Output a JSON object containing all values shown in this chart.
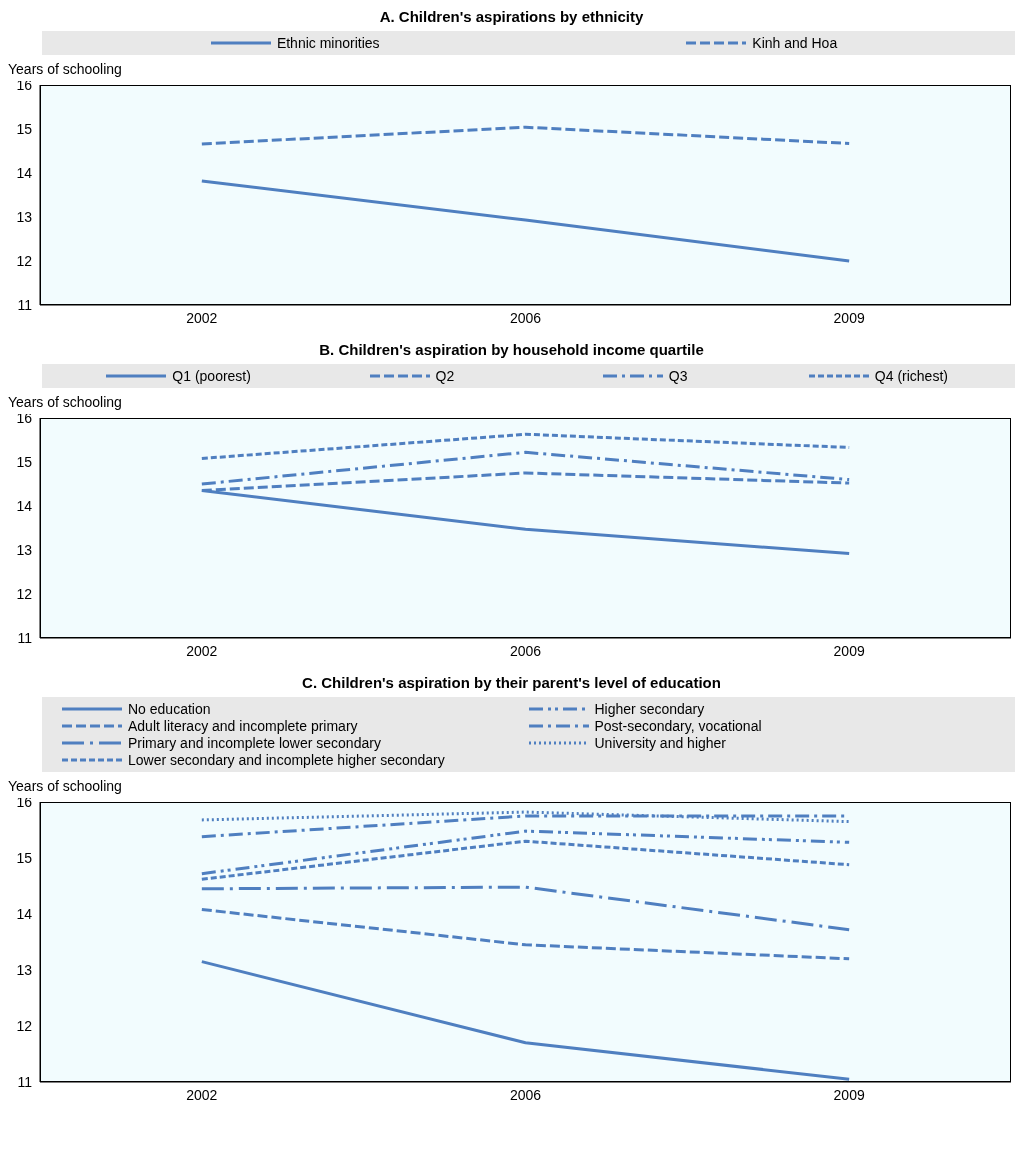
{
  "chart_data": [
    {
      "type": "line",
      "title": "A. Children's aspirations by ethnicity",
      "ylabel": "Years of schooling",
      "categories": [
        "2002",
        "2006",
        "2009"
      ],
      "ylim": [
        11,
        16
      ],
      "yticks": [
        11,
        12,
        13,
        14,
        15,
        16
      ],
      "legend": "top",
      "series": [
        {
          "name": "Ethnic minorities",
          "color": "#4f7fc0",
          "line_style": "solid",
          "values": [
            13.82,
            12.93,
            12.0
          ]
        },
        {
          "name": "Kinh and Hoa",
          "color": "#4f7fc0",
          "line_style": "dashed",
          "values": [
            14.66,
            15.04,
            14.67
          ]
        }
      ]
    },
    {
      "type": "line",
      "title": "B. Children's aspiration by household income quartile",
      "ylabel": "Years of schooling",
      "categories": [
        "2002",
        "2006",
        "2009"
      ],
      "ylim": [
        11,
        16
      ],
      "yticks": [
        11,
        12,
        13,
        14,
        15,
        16
      ],
      "legend": "top",
      "series": [
        {
          "name": "Q1 (poorest)",
          "color": "#4f7fc0",
          "line_style": "solid",
          "values": [
            14.35,
            13.47,
            12.92
          ]
        },
        {
          "name": "Q2",
          "color": "#4f7fc0",
          "line_style": "dashed",
          "values": [
            14.35,
            14.75,
            14.52
          ]
        },
        {
          "name": "Q3",
          "color": "#4f7fc0",
          "line_style": "dashdot",
          "values": [
            14.5,
            15.22,
            14.6
          ]
        },
        {
          "name": "Q4 (richest)",
          "color": "#4f7fc0",
          "line_style": "shortdash",
          "values": [
            15.08,
            15.63,
            15.33
          ]
        }
      ]
    },
    {
      "type": "line",
      "title": "C. Children's aspiration by their parent's level of education",
      "ylabel": "Years of schooling",
      "categories": [
        "2002",
        "2006",
        "2009"
      ],
      "ylim": [
        11,
        16
      ],
      "yticks": [
        11,
        12,
        13,
        14,
        15,
        16
      ],
      "legend": "top",
      "series": [
        {
          "name": "No education",
          "color": "#4f7fc0",
          "line_style": "solid",
          "values": [
            13.15,
            11.7,
            11.05
          ]
        },
        {
          "name": "Adult literacy and incomplete primary",
          "color": "#4f7fc0",
          "line_style": "dashed",
          "values": [
            14.08,
            13.45,
            13.2
          ]
        },
        {
          "name": "Primary and incomplete lower secondary",
          "color": "#4f7fc0",
          "line_style": "longdashdot",
          "values": [
            14.45,
            14.48,
            13.72
          ]
        },
        {
          "name": "Lower secondary and incomplete higher secondary",
          "color": "#4f7fc0",
          "line_style": "shortdash",
          "values": [
            14.62,
            15.3,
            14.88
          ]
        },
        {
          "name": "Higher secondary",
          "color": "#4f7fc0",
          "line_style": "dashdotdot",
          "values": [
            14.72,
            15.48,
            15.28
          ]
        },
        {
          "name": "Post-secondary, vocational",
          "color": "#4f7fc0",
          "line_style": "dashdot",
          "values": [
            15.38,
            15.75,
            15.75
          ]
        },
        {
          "name": "University and higher",
          "color": "#4f7fc0",
          "line_style": "dotted",
          "values": [
            15.68,
            15.82,
            15.65
          ]
        }
      ]
    }
  ]
}
